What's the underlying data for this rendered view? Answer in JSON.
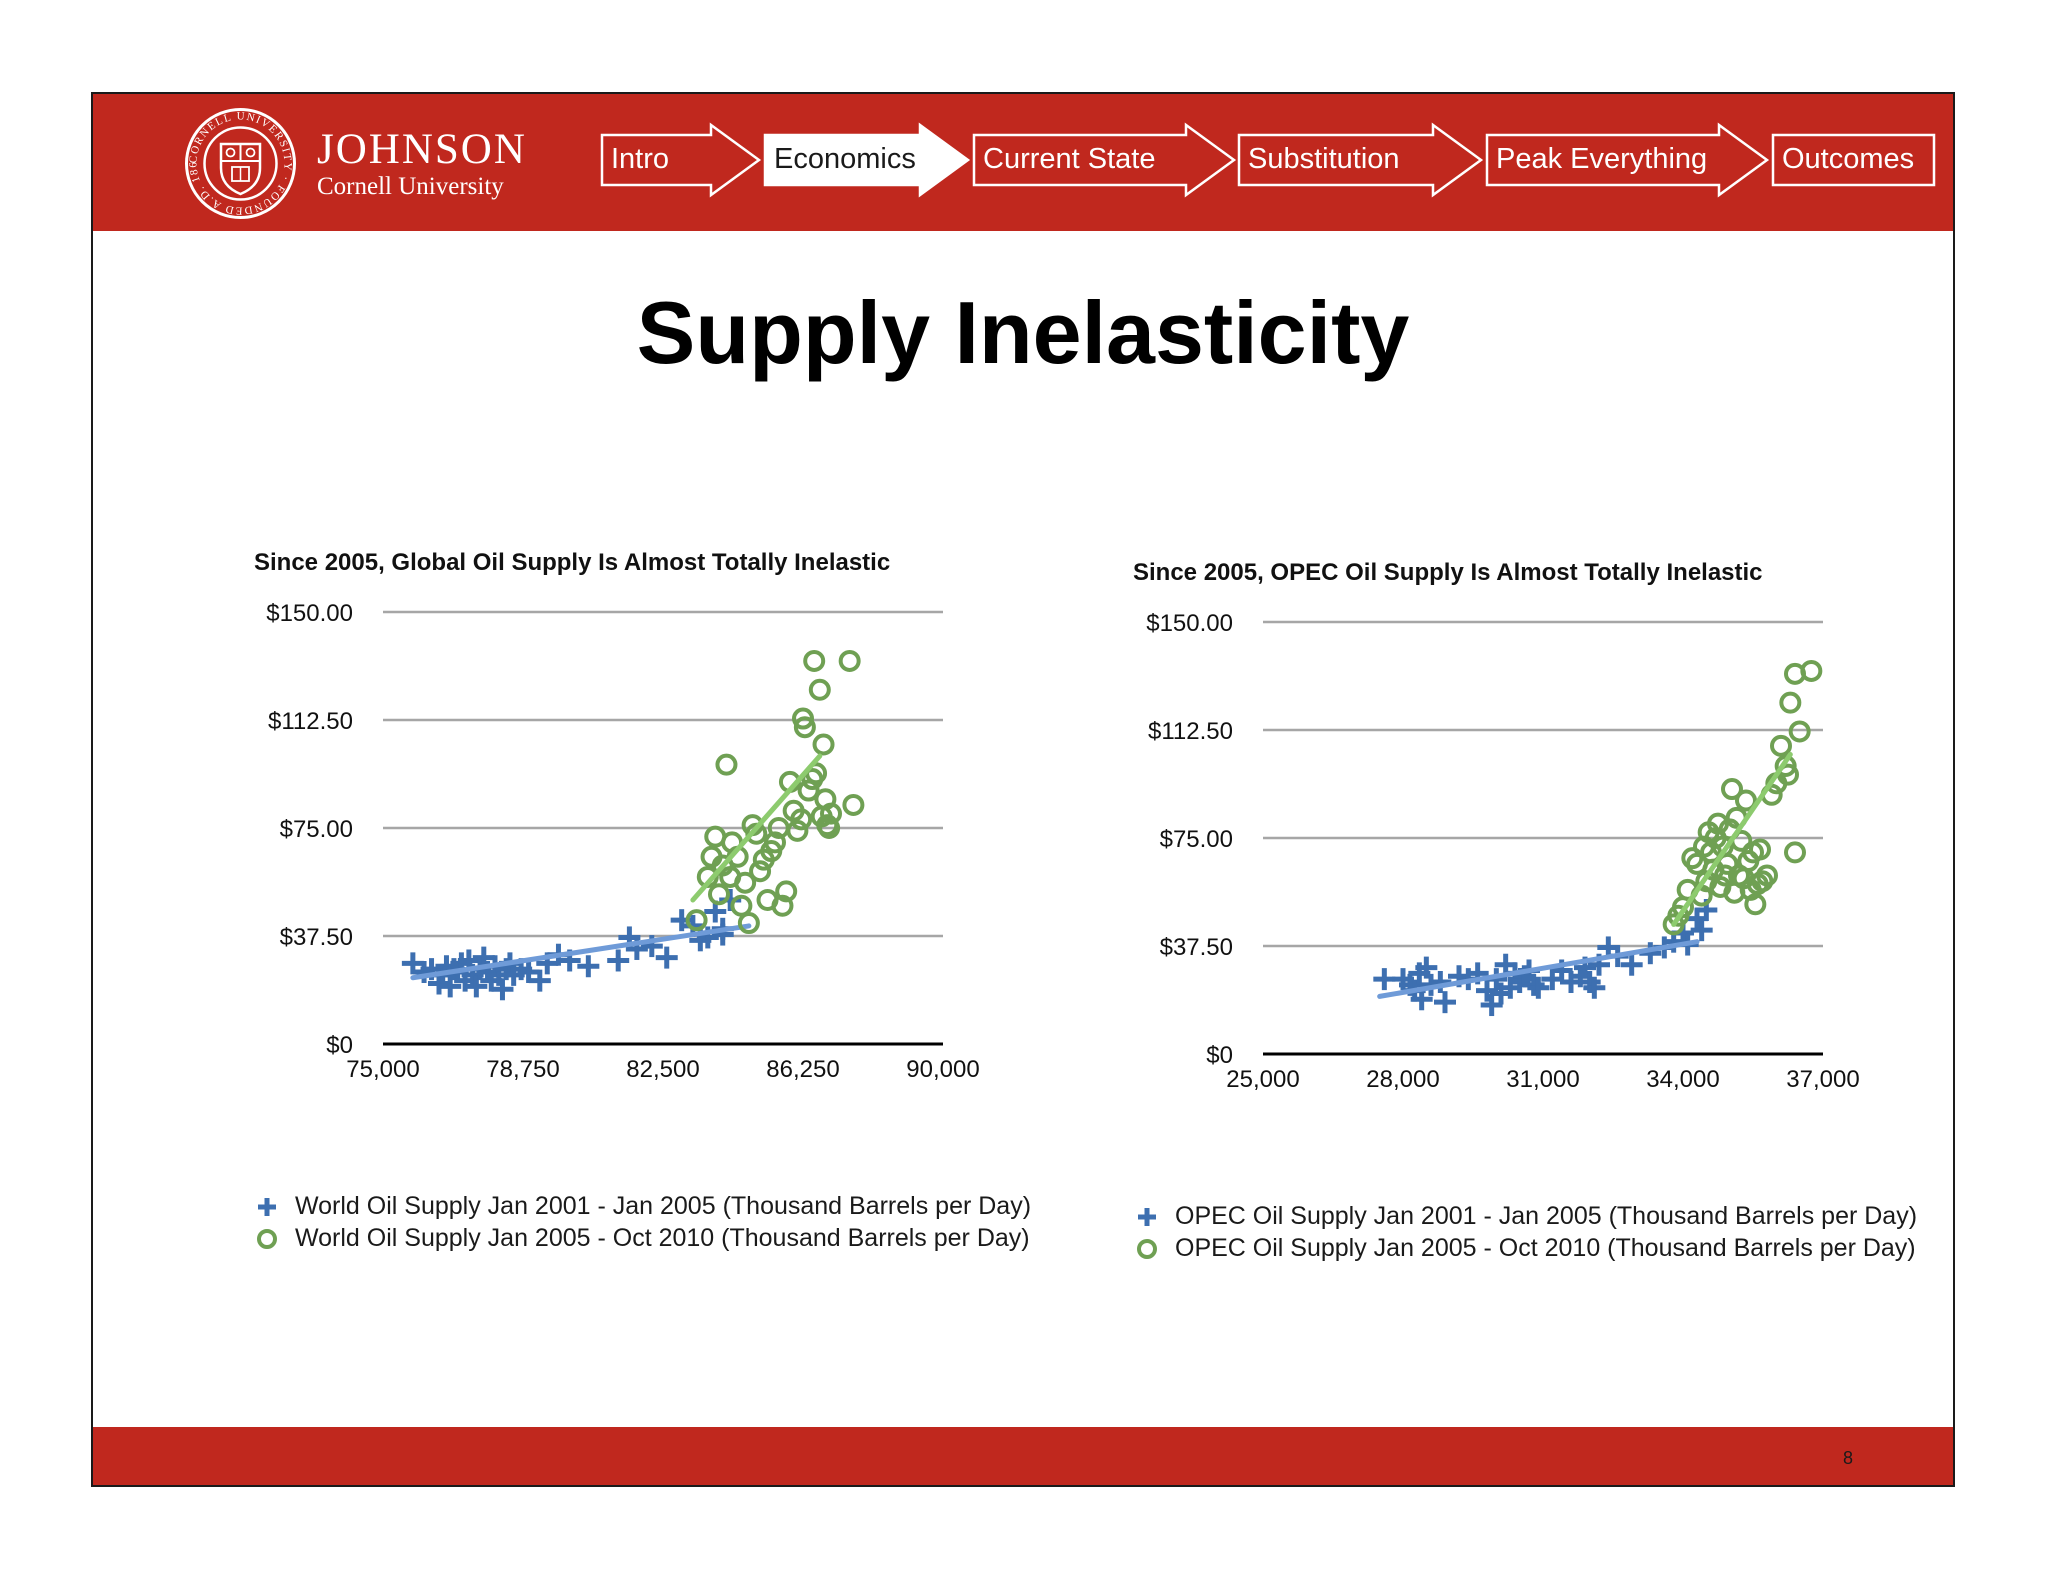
{
  "header": {
    "logo": {
      "name": "JOHNSON",
      "subtitle": "Cornell University",
      "seal_text": "CORNELL UNIVERSITY · FOUNDED A.D. 1865 ·"
    },
    "nav": [
      {
        "label": "Intro",
        "active": false
      },
      {
        "label": "Economics",
        "active": true
      },
      {
        "label": "Current State",
        "active": false
      },
      {
        "label": "Substitution",
        "active": false
      },
      {
        "label": "Peak Everything",
        "active": false
      },
      {
        "label": "Outcomes",
        "active": false
      }
    ]
  },
  "slide": {
    "title": "Supply Inelasticity",
    "page_number": "8"
  },
  "colors": {
    "brand_red": "#c0281e",
    "series_pre": "#3d6fb0",
    "series_post": "#6fa053",
    "trend_pre": "#6f9bd8",
    "trend_post": "#8dcb6e",
    "grid": "#a6a6a6"
  },
  "chart_data": [
    {
      "type": "scatter",
      "title": "Since 2005, Global Oil Supply Is Almost Totally Inelastic",
      "xlabel": "",
      "ylabel": "",
      "xlim": [
        75000,
        90000
      ],
      "ylim": [
        0,
        150
      ],
      "x_ticks": [
        "75,000",
        "78,750",
        "82,500",
        "86,250",
        "90,000"
      ],
      "y_ticks": [
        "$0",
        "$37.50",
        "$75.00",
        "$112.50",
        "$150.00"
      ],
      "grid": true,
      "legend_position": "bottom",
      "series": [
        {
          "name": "World Oil Supply Jan 2001 - Jan 2005 (Thousand Barrels per Day)",
          "marker": "plus",
          "trendline": [
            [
              75800,
              23
            ],
            [
              84800,
              41
            ]
          ],
          "points": [
            [
              75800,
              28
            ],
            [
              76100,
              25
            ],
            [
              76300,
              26
            ],
            [
              76500,
              21
            ],
            [
              76600,
              24
            ],
            [
              76700,
              27
            ],
            [
              76800,
              20
            ],
            [
              76900,
              26
            ],
            [
              77000,
              25
            ],
            [
              77100,
              28
            ],
            [
              77200,
              22
            ],
            [
              77300,
              29
            ],
            [
              77400,
              24
            ],
            [
              77500,
              20
            ],
            [
              77600,
              26
            ],
            [
              77700,
              30
            ],
            [
              77800,
              25
            ],
            [
              77900,
              22
            ],
            [
              78000,
              27
            ],
            [
              78100,
              24
            ],
            [
              78200,
              19
            ],
            [
              78300,
              26
            ],
            [
              78400,
              28
            ],
            [
              78500,
              24
            ],
            [
              78700,
              26
            ],
            [
              78900,
              25
            ],
            [
              79200,
              22
            ],
            [
              79400,
              28
            ],
            [
              79700,
              31
            ],
            [
              80000,
              29
            ],
            [
              80500,
              27
            ],
            [
              81300,
              29
            ],
            [
              81600,
              37
            ],
            [
              81800,
              33
            ],
            [
              82200,
              34
            ],
            [
              82600,
              30
            ],
            [
              83000,
              43
            ],
            [
              83300,
              41
            ],
            [
              83500,
              36
            ],
            [
              83700,
              37
            ],
            [
              83900,
              46
            ],
            [
              84100,
              40
            ],
            [
              84300,
              50
            ],
            [
              84100,
              38
            ]
          ]
        },
        {
          "name": "World Oil Supply Jan 2005 - Oct 2010 (Thousand Barrels per Day)",
          "marker": "circle",
          "trendline": [
            [
              83300,
              50
            ],
            [
              86700,
              100
            ]
          ],
          "points": [
            [
              83400,
              43
            ],
            [
              83700,
              58
            ],
            [
              83800,
              65
            ],
            [
              83900,
              72
            ],
            [
              84000,
              52
            ],
            [
              84100,
              62
            ],
            [
              84200,
              97
            ],
            [
              84300,
              58
            ],
            [
              84350,
              70
            ],
            [
              84500,
              65
            ],
            [
              84600,
              48
            ],
            [
              84700,
              56
            ],
            [
              84800,
              42
            ],
            [
              84900,
              76
            ],
            [
              85000,
              73
            ],
            [
              85100,
              60
            ],
            [
              85200,
              64
            ],
            [
              85300,
              50
            ],
            [
              85400,
              67
            ],
            [
              85500,
              70
            ],
            [
              85600,
              75
            ],
            [
              85700,
              48
            ],
            [
              85800,
              53
            ],
            [
              85900,
              91
            ],
            [
              86000,
              81
            ],
            [
              86100,
              74
            ],
            [
              86200,
              78
            ],
            [
              86250,
              113
            ],
            [
              86300,
              110
            ],
            [
              86400,
              88
            ],
            [
              86500,
              92
            ],
            [
              86550,
              133
            ],
            [
              86600,
              94
            ],
            [
              86700,
              123
            ],
            [
              86750,
              79
            ],
            [
              86800,
              104
            ],
            [
              86850,
              85
            ],
            [
              86900,
              76
            ],
            [
              86950,
              75
            ],
            [
              87000,
              80
            ],
            [
              87500,
              133
            ],
            [
              87600,
              83
            ]
          ]
        }
      ]
    },
    {
      "type": "scatter",
      "title": "Since 2005, OPEC Oil Supply Is Almost Totally Inelastic",
      "xlabel": "",
      "ylabel": "",
      "xlim": [
        25000,
        37000
      ],
      "ylim": [
        0,
        150
      ],
      "x_ticks": [
        "25,000",
        "28,000",
        "31,000",
        "34,000",
        "37,000"
      ],
      "y_ticks": [
        "$0",
        "$37.50",
        "$75.00",
        "$112.50",
        "$150.00"
      ],
      "grid": true,
      "legend_position": "bottom",
      "series": [
        {
          "name": "OPEC Oil Supply Jan 2001 - Jan 2005 (Thousand Barrels per Day)",
          "marker": "plus",
          "trendline": [
            [
              27500,
              20
            ],
            [
              34300,
              39
            ]
          ],
          "points": [
            [
              27600,
              26
            ],
            [
              28000,
              26
            ],
            [
              28150,
              24
            ],
            [
              28250,
              22
            ],
            [
              28350,
              28
            ],
            [
              28400,
              19
            ],
            [
              28500,
              30
            ],
            [
              28600,
              24
            ],
            [
              28800,
              25
            ],
            [
              28900,
              18
            ],
            [
              29200,
              27
            ],
            [
              29400,
              26
            ],
            [
              29600,
              28
            ],
            [
              29800,
              22
            ],
            [
              29900,
              17
            ],
            [
              30000,
              26
            ],
            [
              30100,
              21
            ],
            [
              30200,
              31
            ],
            [
              30300,
              23
            ],
            [
              30400,
              28
            ],
            [
              30500,
              25
            ],
            [
              30600,
              27
            ],
            [
              30700,
              29
            ],
            [
              30800,
              24
            ],
            [
              30900,
              23
            ],
            [
              31200,
              26
            ],
            [
              31400,
              29
            ],
            [
              31600,
              25
            ],
            [
              31800,
              27
            ],
            [
              31900,
              30
            ],
            [
              32000,
              25
            ],
            [
              32100,
              23
            ],
            [
              32200,
              31
            ],
            [
              32400,
              37
            ],
            [
              32600,
              34
            ],
            [
              32900,
              31
            ],
            [
              33300,
              35
            ],
            [
              33600,
              37
            ],
            [
              33800,
              39
            ],
            [
              34000,
              42
            ],
            [
              34100,
              38
            ],
            [
              34300,
              47
            ],
            [
              34400,
              43
            ],
            [
              34500,
              50
            ]
          ]
        },
        {
          "name": "OPEC Oil Supply Jan 2005 - Oct 2010 (Thousand Barrels per Day)",
          "marker": "circle",
          "trendline": [
            [
              33800,
              45
            ],
            [
              36300,
              104
            ]
          ],
          "points": [
            [
              33800,
              45
            ],
            [
              33900,
              48
            ],
            [
              34000,
              51
            ],
            [
              34100,
              57
            ],
            [
              34200,
              68
            ],
            [
              34300,
              66
            ],
            [
              34400,
              55
            ],
            [
              34450,
              72
            ],
            [
              34500,
              60
            ],
            [
              34550,
              77
            ],
            [
              34600,
              70
            ],
            [
              34650,
              64
            ],
            [
              34700,
              75
            ],
            [
              34750,
              80
            ],
            [
              34800,
              58
            ],
            [
              34850,
              72
            ],
            [
              34900,
              62
            ],
            [
              34950,
              66
            ],
            [
              35000,
              78
            ],
            [
              35050,
              92
            ],
            [
              35100,
              56
            ],
            [
              35150,
              82
            ],
            [
              35200,
              62
            ],
            [
              35250,
              74
            ],
            [
              35300,
              61
            ],
            [
              35350,
              88
            ],
            [
              35400,
              67
            ],
            [
              35450,
              57
            ],
            [
              35500,
              70
            ],
            [
              35550,
              52
            ],
            [
              35600,
              59
            ],
            [
              35650,
              71
            ],
            [
              35700,
              60
            ],
            [
              35800,
              62
            ],
            [
              35900,
              90
            ],
            [
              36000,
              94
            ],
            [
              36100,
              107
            ],
            [
              36200,
              100
            ],
            [
              36250,
              97
            ],
            [
              36300,
              122
            ],
            [
              36400,
              132
            ],
            [
              36500,
              112
            ],
            [
              36750,
              133
            ],
            [
              36400,
              70
            ]
          ]
        }
      ]
    }
  ]
}
